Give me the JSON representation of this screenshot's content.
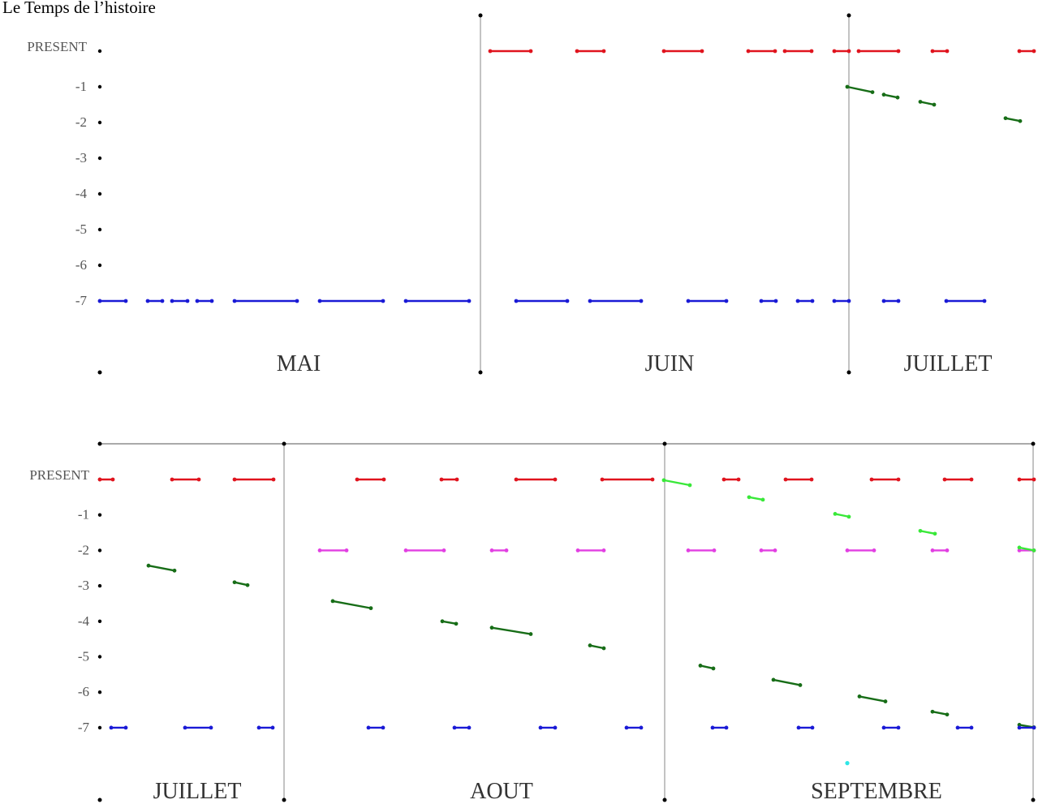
{
  "title": "Le Temps de l’histoire",
  "y_levels": [
    "PRESENT",
    "-1",
    "-2",
    "-3",
    "-4",
    "-5",
    "-6",
    "-7"
  ],
  "colors": {
    "red": "#e0141e",
    "blue": "#1a1ad6",
    "green": "#176d17",
    "lightgreen": "#39e839",
    "magenta": "#e23fe2",
    "cyan": "#2ee6e6",
    "divider": "#b4b4b4",
    "axis": "#000000"
  },
  "panels": [
    {
      "id": "top",
      "months": [
        "MAI",
        "JUIN",
        "JUILLET"
      ],
      "segments": [
        {
          "c": "blue",
          "x1": 123,
          "y1": 7,
          "x2": 155,
          "y2": 7
        },
        {
          "c": "blue",
          "x1": 182,
          "y1": 7,
          "x2": 200,
          "y2": 7
        },
        {
          "c": "blue",
          "x1": 212,
          "y1": 7,
          "x2": 231,
          "y2": 7
        },
        {
          "c": "blue",
          "x1": 243,
          "y1": 7,
          "x2": 261,
          "y2": 7
        },
        {
          "c": "blue",
          "x1": 289,
          "y1": 7,
          "x2": 366,
          "y2": 7
        },
        {
          "c": "blue",
          "x1": 394,
          "y1": 7,
          "x2": 472,
          "y2": 7
        },
        {
          "c": "blue",
          "x1": 500,
          "y1": 7,
          "x2": 578,
          "y2": 7
        },
        {
          "c": "blue",
          "x1": 636,
          "y1": 7,
          "x2": 699,
          "y2": 7
        },
        {
          "c": "blue",
          "x1": 727,
          "y1": 7,
          "x2": 790,
          "y2": 7
        },
        {
          "c": "blue",
          "x1": 848,
          "y1": 7,
          "x2": 895,
          "y2": 7
        },
        {
          "c": "blue",
          "x1": 938,
          "y1": 7,
          "x2": 956,
          "y2": 7
        },
        {
          "c": "blue",
          "x1": 983,
          "y1": 7,
          "x2": 1001,
          "y2": 7
        },
        {
          "c": "blue",
          "x1": 1028,
          "y1": 7,
          "x2": 1046,
          "y2": 7
        },
        {
          "c": "blue",
          "x1": 1089,
          "y1": 7,
          "x2": 1107,
          "y2": 7
        },
        {
          "c": "blue",
          "x1": 1166,
          "y1": 7,
          "x2": 1213,
          "y2": 7
        },
        {
          "c": "red",
          "x1": 604,
          "y1": 0,
          "x2": 654,
          "y2": 0
        },
        {
          "c": "red",
          "x1": 711,
          "y1": 0,
          "x2": 744,
          "y2": 0
        },
        {
          "c": "red",
          "x1": 818,
          "y1": 0,
          "x2": 865,
          "y2": 0
        },
        {
          "c": "red",
          "x1": 922,
          "y1": 0,
          "x2": 955,
          "y2": 0
        },
        {
          "c": "red",
          "x1": 967,
          "y1": 0,
          "x2": 1000,
          "y2": 0
        },
        {
          "c": "red",
          "x1": 1028,
          "y1": 0,
          "x2": 1046,
          "y2": 0
        },
        {
          "c": "red",
          "x1": 1058,
          "y1": 0,
          "x2": 1107,
          "y2": 0
        },
        {
          "c": "red",
          "x1": 1149,
          "y1": 0,
          "x2": 1167,
          "y2": 0
        },
        {
          "c": "red",
          "x1": 1256,
          "y1": 0,
          "x2": 1274,
          "y2": 0
        },
        {
          "c": "green",
          "x1": 1044,
          "y1": 1.0,
          "x2": 1075,
          "y2": 1.15
        },
        {
          "c": "green",
          "x1": 1089,
          "y1": 1.22,
          "x2": 1106,
          "y2": 1.3
        },
        {
          "c": "green",
          "x1": 1134,
          "y1": 1.42,
          "x2": 1151,
          "y2": 1.5
        },
        {
          "c": "green",
          "x1": 1239,
          "y1": 1.88,
          "x2": 1257,
          "y2": 1.96
        }
      ]
    },
    {
      "id": "bottom",
      "months": [
        "JUILLET",
        "AOUT",
        "SEPTEMBRE"
      ],
      "segments": [
        {
          "c": "red",
          "x1": 123,
          "y1": 0,
          "x2": 139,
          "y2": 0
        },
        {
          "c": "red",
          "x1": 212,
          "y1": 0,
          "x2": 245,
          "y2": 0
        },
        {
          "c": "red",
          "x1": 289,
          "y1": 0,
          "x2": 337,
          "y2": 0
        },
        {
          "c": "red",
          "x1": 440,
          "y1": 0,
          "x2": 473,
          "y2": 0
        },
        {
          "c": "red",
          "x1": 544,
          "y1": 0,
          "x2": 563,
          "y2": 0
        },
        {
          "c": "red",
          "x1": 636,
          "y1": 0,
          "x2": 684,
          "y2": 0
        },
        {
          "c": "red",
          "x1": 742,
          "y1": 0,
          "x2": 804,
          "y2": 0
        },
        {
          "c": "red",
          "x1": 892,
          "y1": 0,
          "x2": 910,
          "y2": 0
        },
        {
          "c": "red",
          "x1": 968,
          "y1": 0,
          "x2": 1000,
          "y2": 0
        },
        {
          "c": "red",
          "x1": 1074,
          "y1": 0,
          "x2": 1107,
          "y2": 0
        },
        {
          "c": "red",
          "x1": 1164,
          "y1": 0,
          "x2": 1197,
          "y2": 0
        },
        {
          "c": "red",
          "x1": 1256,
          "y1": 0,
          "x2": 1274,
          "y2": 0
        },
        {
          "c": "magenta",
          "x1": 394,
          "y1": 2,
          "x2": 427,
          "y2": 2
        },
        {
          "c": "magenta",
          "x1": 500,
          "y1": 2,
          "x2": 547,
          "y2": 2
        },
        {
          "c": "magenta",
          "x1": 606,
          "y1": 2,
          "x2": 624,
          "y2": 2
        },
        {
          "c": "magenta",
          "x1": 712,
          "y1": 2,
          "x2": 744,
          "y2": 2
        },
        {
          "c": "magenta",
          "x1": 848,
          "y1": 2,
          "x2": 880,
          "y2": 2
        },
        {
          "c": "magenta",
          "x1": 938,
          "y1": 2,
          "x2": 955,
          "y2": 2
        },
        {
          "c": "magenta",
          "x1": 1044,
          "y1": 2,
          "x2": 1077,
          "y2": 2
        },
        {
          "c": "magenta",
          "x1": 1149,
          "y1": 2,
          "x2": 1167,
          "y2": 2
        },
        {
          "c": "magenta",
          "x1": 1256,
          "y1": 2,
          "x2": 1274,
          "y2": 2
        },
        {
          "c": "lightgreen",
          "x1": 818,
          "y1": 0.02,
          "x2": 850,
          "y2": 0.16
        },
        {
          "c": "lightgreen",
          "x1": 923,
          "y1": 0.5,
          "x2": 940,
          "y2": 0.57
        },
        {
          "c": "lightgreen",
          "x1": 1029,
          "y1": 0.97,
          "x2": 1046,
          "y2": 1.05
        },
        {
          "c": "lightgreen",
          "x1": 1134,
          "y1": 1.45,
          "x2": 1152,
          "y2": 1.53
        },
        {
          "c": "lightgreen",
          "x1": 1256,
          "y1": 1.92,
          "x2": 1274,
          "y2": 2.0
        },
        {
          "c": "green",
          "x1": 183,
          "y1": 2.43,
          "x2": 215,
          "y2": 2.57
        },
        {
          "c": "green",
          "x1": 289,
          "y1": 2.9,
          "x2": 305,
          "y2": 2.98
        },
        {
          "c": "green",
          "x1": 410,
          "y1": 3.43,
          "x2": 457,
          "y2": 3.63
        },
        {
          "c": "green",
          "x1": 545,
          "y1": 4.0,
          "x2": 562,
          "y2": 4.07
        },
        {
          "c": "green",
          "x1": 606,
          "y1": 4.18,
          "x2": 654,
          "y2": 4.36
        },
        {
          "c": "green",
          "x1": 727,
          "y1": 4.68,
          "x2": 744,
          "y2": 4.76
        },
        {
          "c": "green",
          "x1": 863,
          "y1": 5.25,
          "x2": 879,
          "y2": 5.33
        },
        {
          "c": "green",
          "x1": 953,
          "y1": 5.65,
          "x2": 986,
          "y2": 5.8
        },
        {
          "c": "green",
          "x1": 1059,
          "y1": 6.12,
          "x2": 1091,
          "y2": 6.26
        },
        {
          "c": "green",
          "x1": 1149,
          "y1": 6.55,
          "x2": 1167,
          "y2": 6.63
        },
        {
          "c": "green",
          "x1": 1256,
          "y1": 6.92,
          "x2": 1274,
          "y2": 6.99
        },
        {
          "c": "blue",
          "x1": 137,
          "y1": 7,
          "x2": 155,
          "y2": 7
        },
        {
          "c": "blue",
          "x1": 228,
          "y1": 7,
          "x2": 260,
          "y2": 7
        },
        {
          "c": "blue",
          "x1": 319,
          "y1": 7,
          "x2": 336,
          "y2": 7
        },
        {
          "c": "blue",
          "x1": 454,
          "y1": 7,
          "x2": 472,
          "y2": 7
        },
        {
          "c": "blue",
          "x1": 560,
          "y1": 7,
          "x2": 578,
          "y2": 7
        },
        {
          "c": "blue",
          "x1": 666,
          "y1": 7,
          "x2": 684,
          "y2": 7
        },
        {
          "c": "blue",
          "x1": 772,
          "y1": 7,
          "x2": 790,
          "y2": 7
        },
        {
          "c": "blue",
          "x1": 878,
          "y1": 7,
          "x2": 895,
          "y2": 7
        },
        {
          "c": "blue",
          "x1": 984,
          "y1": 7,
          "x2": 1001,
          "y2": 7
        },
        {
          "c": "blue",
          "x1": 1089,
          "y1": 7,
          "x2": 1107,
          "y2": 7
        },
        {
          "c": "blue",
          "x1": 1180,
          "y1": 7,
          "x2": 1197,
          "y2": 7
        },
        {
          "c": "blue",
          "x1": 1256,
          "y1": 7,
          "x2": 1274,
          "y2": 7
        }
      ],
      "points": [
        {
          "c": "cyan",
          "x": 1044,
          "y": 8.0
        }
      ]
    }
  ]
}
